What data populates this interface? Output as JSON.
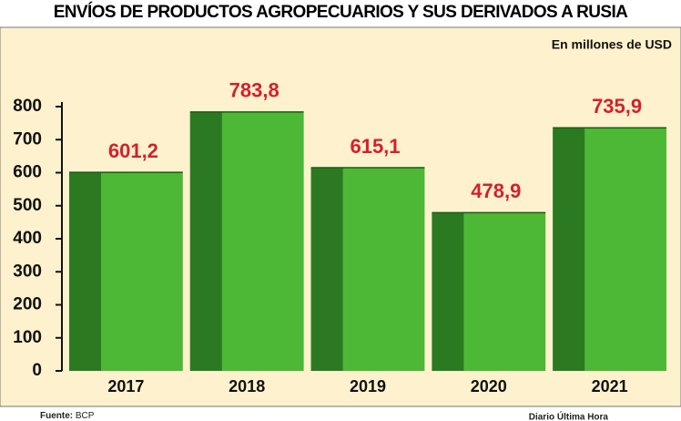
{
  "chart_data": {
    "type": "bar",
    "title": "ENVÍOS DE PRODUCTOS AGROPECUARIOS Y SUS DERIVADOS A RUSIA",
    "unit_label": "En millones de USD",
    "categories": [
      "2017",
      "2018",
      "2019",
      "2020",
      "2021"
    ],
    "values": [
      601.2,
      783.8,
      615.1,
      478.9,
      735.9
    ],
    "value_labels": [
      "601,2",
      "783,8",
      "615,1",
      "478,9",
      "735,9"
    ],
    "color": "#4cb835",
    "side_color": "#2b7a22",
    "label_color": "#d4202c",
    "ylim": [
      0,
      800
    ],
    "yticks": [
      0,
      100,
      200,
      300,
      400,
      500,
      600,
      700,
      800
    ],
    "grid": false,
    "source_label": "Fuente:",
    "source": "BCP",
    "credit": "Diario Última Hora"
  }
}
